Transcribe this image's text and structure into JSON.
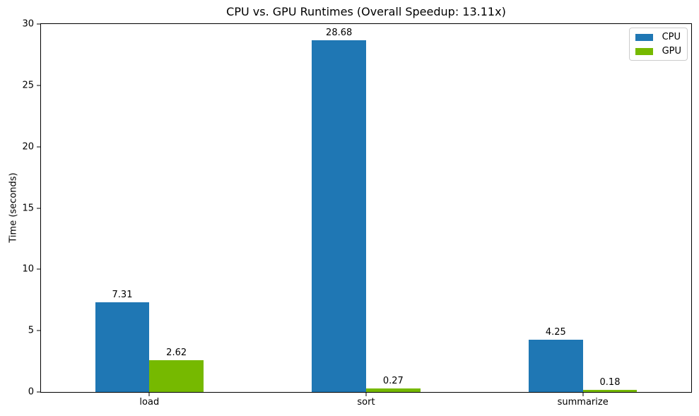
{
  "chart_data": {
    "type": "bar",
    "title": "CPU vs. GPU Runtimes (Overall Speedup: 13.11x)",
    "categories": [
      "load",
      "sort",
      "summarize"
    ],
    "series": [
      {
        "name": "CPU",
        "color": "#1f77b4",
        "values": [
          7.31,
          28.68,
          4.25
        ]
      },
      {
        "name": "GPU",
        "color": "#76b900",
        "values": [
          2.62,
          0.27,
          0.18
        ]
      }
    ],
    "bar_labels": [
      "7.31",
      "28.68",
      "4.25",
      "2.62",
      "0.27",
      "0.18"
    ],
    "xlabel": "",
    "ylabel": "Time (seconds)",
    "ylim": [
      0,
      30
    ],
    "yticks": [
      0,
      5,
      10,
      15,
      20,
      25,
      30
    ],
    "bar_width_units": 0.25,
    "grid": false,
    "legend_position": "upper right",
    "background_color": "#ffffff",
    "spine_color": "#000000",
    "legend_border_color": "#cccccc"
  }
}
